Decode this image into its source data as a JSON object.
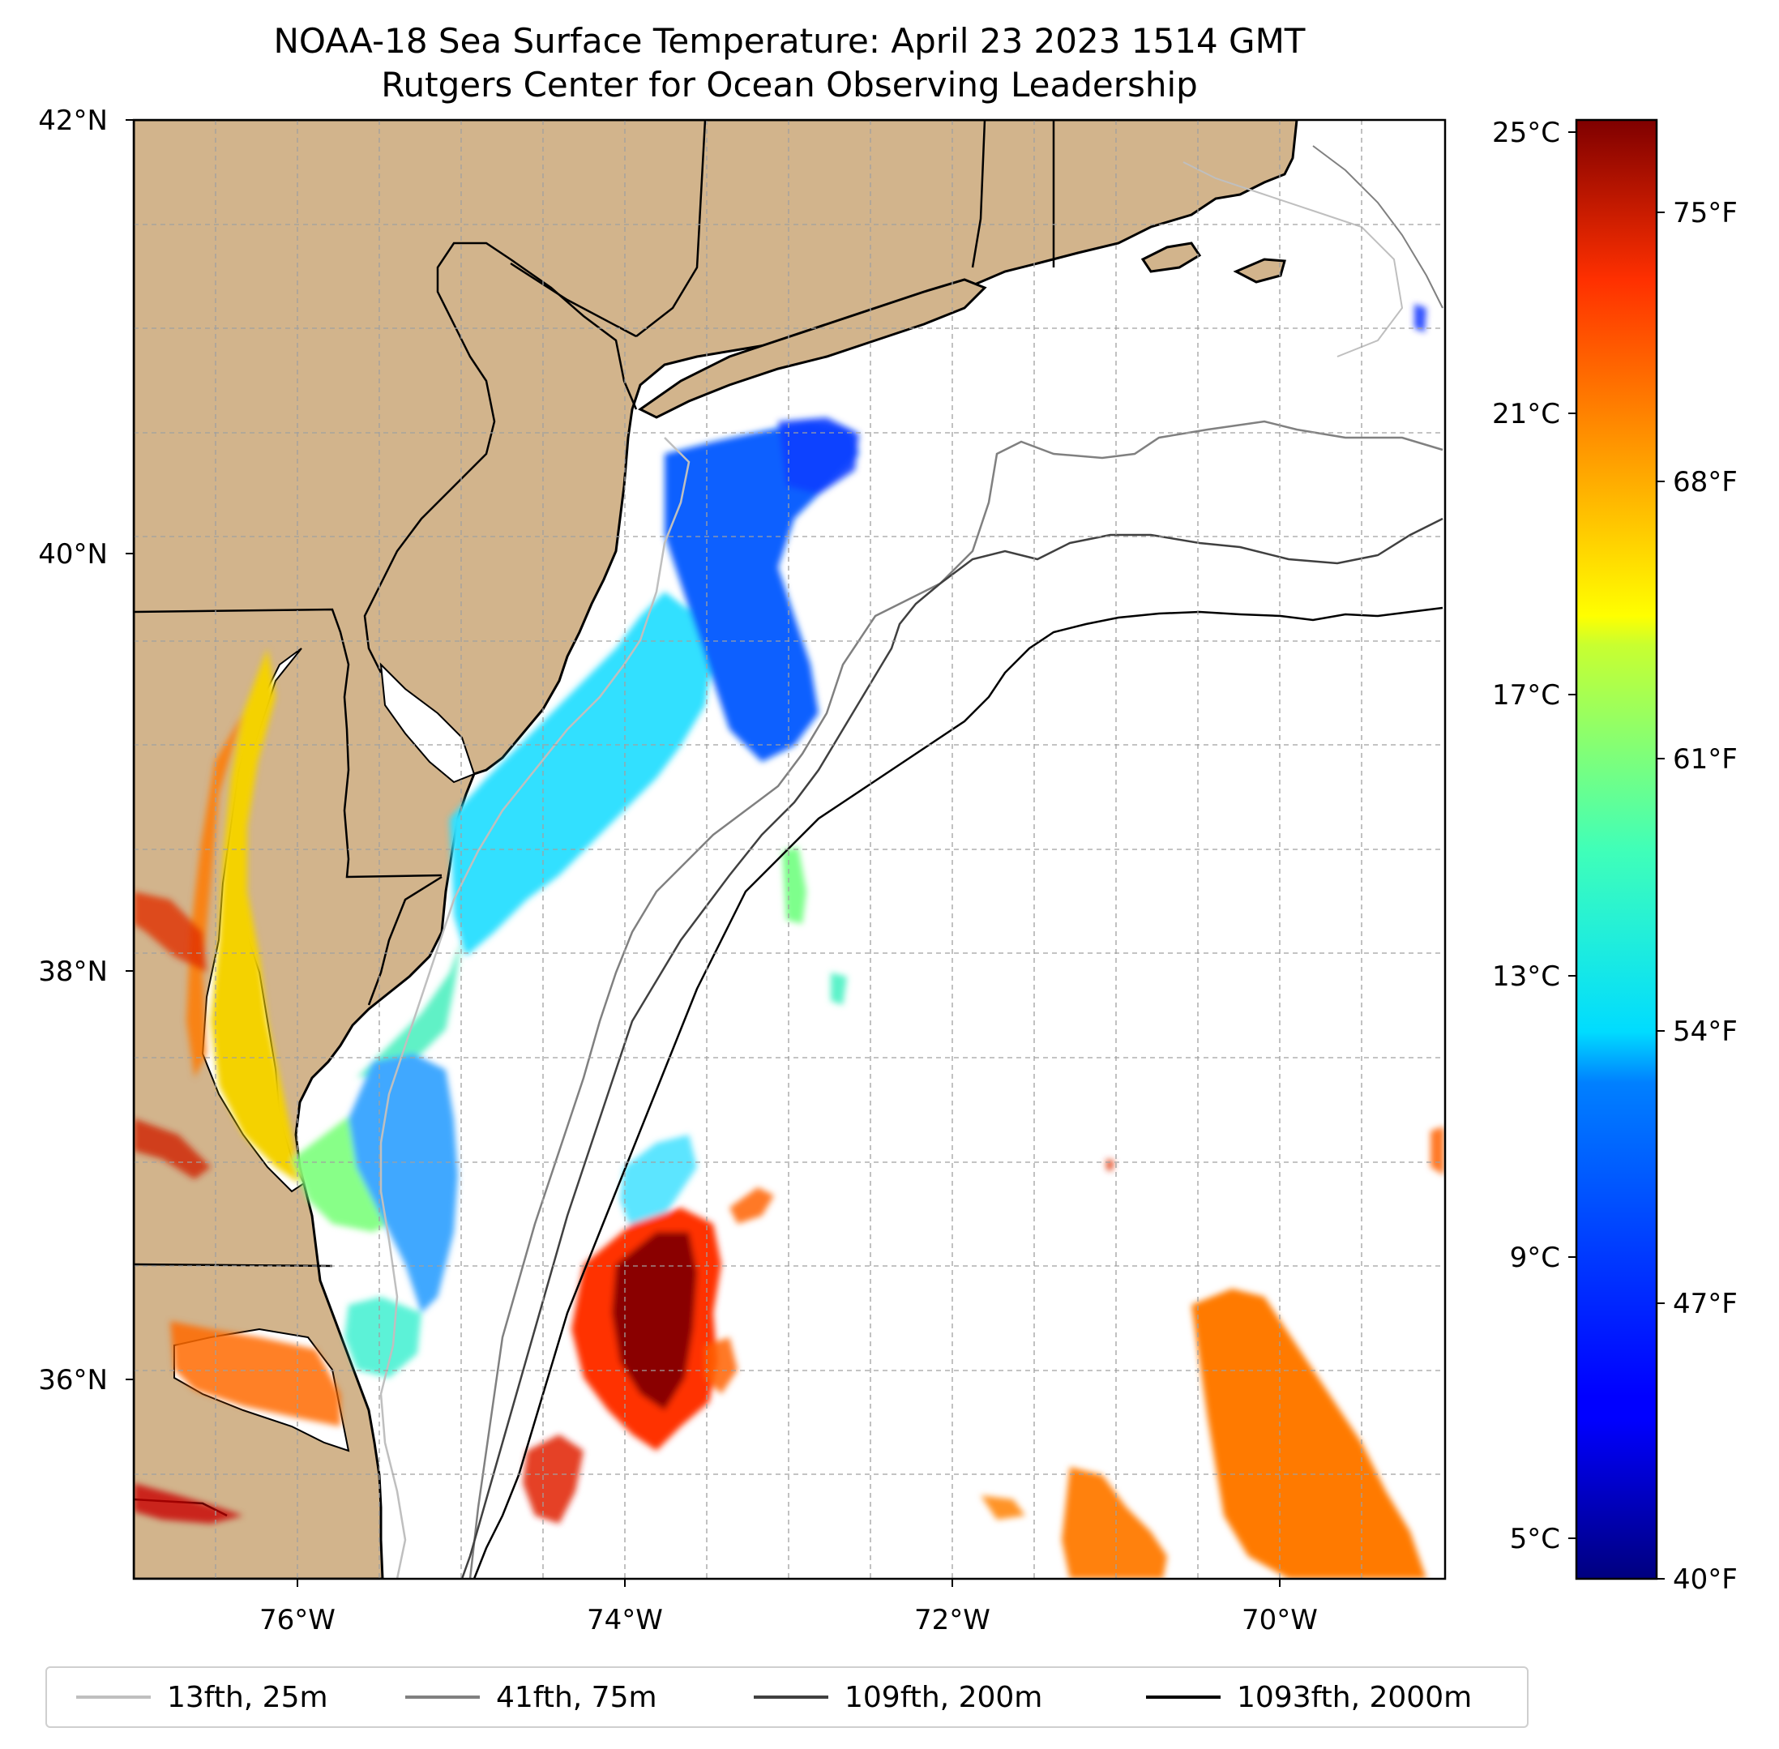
{
  "title": {
    "line1": "NOAA-18 Sea Surface Temperature: April 23 2023 1514 GMT",
    "line2": "Rutgers Center for Ocean Observing Leadership"
  },
  "map": {
    "lon_range": [
      -77.0,
      -69.0
    ],
    "lat_range": [
      35.0,
      42.0
    ],
    "gridlines": true,
    "land_color": "#d2b48c",
    "no_data_color": "#ffffff",
    "lat_labels": [
      "42°N",
      "40°N",
      "38°N",
      "36°N"
    ],
    "lat_values": [
      42,
      40,
      38,
      36
    ],
    "lon_labels": [
      "76°W",
      "74°W",
      "72°W",
      "70°W"
    ],
    "lon_values": [
      -76,
      -74,
      -72,
      -70
    ]
  },
  "colorbar": {
    "colormap": "jet",
    "celsius_labels": [
      "25°C",
      "21°C",
      "17°C",
      "13°C",
      "9°C",
      "5°C"
    ],
    "celsius_values": [
      25,
      21,
      17,
      13,
      9,
      5
    ],
    "fahrenheit_labels": [
      "75°F",
      "68°F",
      "61°F",
      "54°F",
      "47°F",
      "40°F"
    ],
    "fahrenheit_values": [
      75,
      68,
      61,
      54,
      47,
      40
    ],
    "range_f": [
      40,
      77
    ]
  },
  "legend": [
    {
      "label": "13fth, 25m",
      "color": "#bfbfbf"
    },
    {
      "label": "41fth, 75m",
      "color": "#808080"
    },
    {
      "label": "109fth, 200m",
      "color": "#404040"
    },
    {
      "label": "1093fth, 2000m",
      "color": "#000000"
    }
  ]
}
